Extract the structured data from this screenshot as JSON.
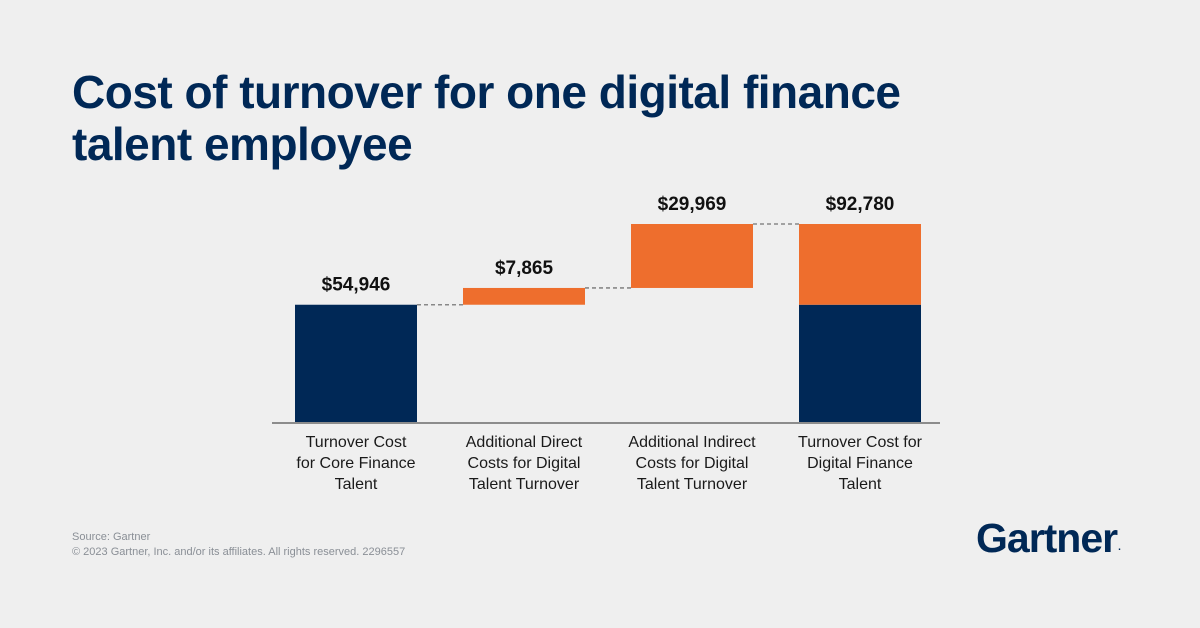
{
  "title_lines": [
    "Cost of turnover for one digital finance",
    "talent employee"
  ],
  "chart_data": {
    "type": "waterfall",
    "categories": [
      [
        "Turnover Cost",
        "for Core Finance",
        "Talent"
      ],
      [
        "Additional Direct",
        "Costs for Digital",
        "Talent Turnover"
      ],
      [
        "Additional Indirect",
        "Costs for Digital",
        "Talent Turnover"
      ],
      [
        "Turnover Cost for",
        "Digital Finance",
        "Talent"
      ]
    ],
    "values": [
      54946,
      7865,
      29969,
      92780
    ],
    "value_labels": [
      "$54,946",
      "$7,865",
      "$29,969",
      "$92,780"
    ],
    "kinds": [
      "total",
      "increase",
      "increase",
      "total"
    ],
    "total_breakdown": [
      54946,
      37834
    ],
    "colors": {
      "base": "#002856",
      "increase": "#ee6e2d",
      "axis": "#6b6b6b",
      "connector": "#888888"
    },
    "ylim": [
      0,
      92780
    ]
  },
  "footer": {
    "source": "Source: Gartner",
    "copyright": "© 2023 Gartner, Inc. and/or its affiliates. All rights reserved. 2296557"
  },
  "logo": {
    "text": "Gartner",
    "mark": "."
  }
}
